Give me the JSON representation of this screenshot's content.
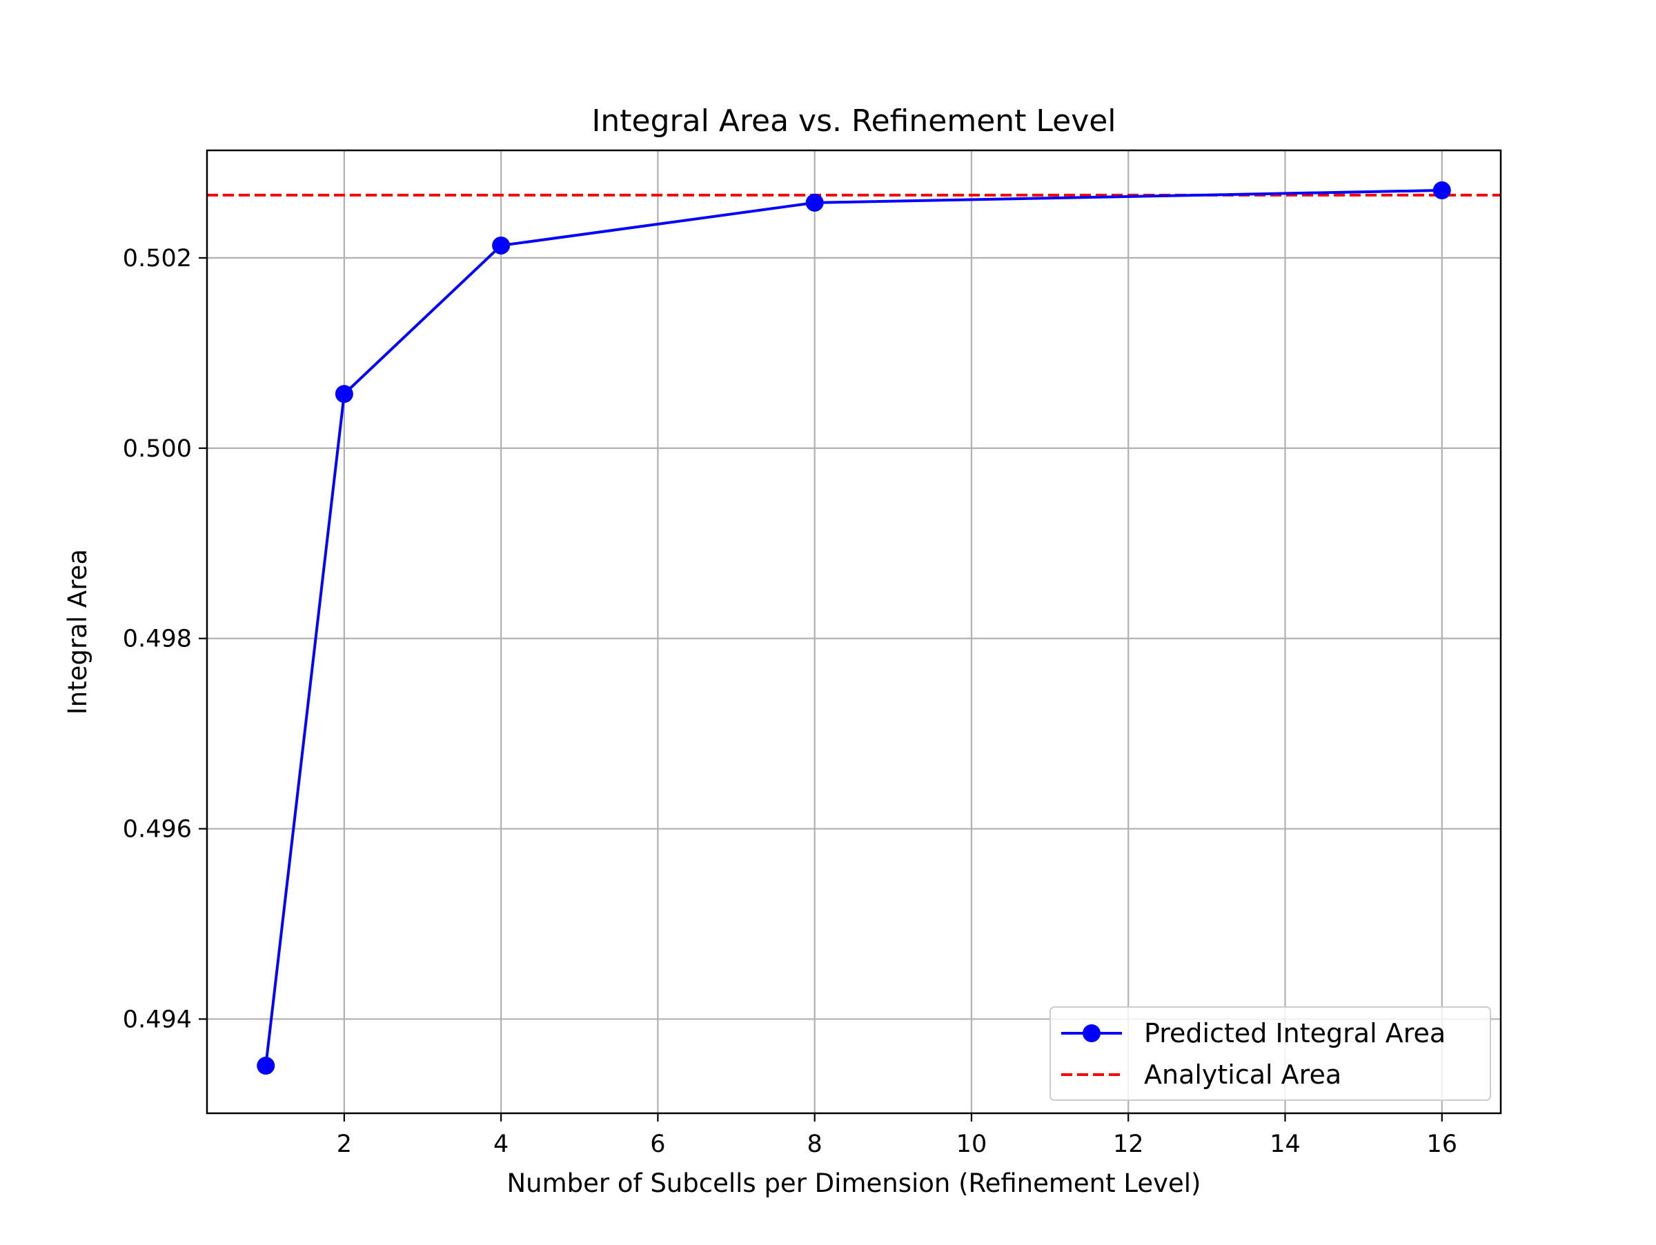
{
  "chart_data": {
    "type": "line",
    "title": "Integral Area vs. Refinement Level",
    "xlabel": "Number of Subcells per Dimension (Refinement Level)",
    "ylabel": "Integral Area",
    "xlim": [
      0.25,
      16.75
    ],
    "ylim": [
      0.49301,
      0.50313
    ],
    "x_ticks": [
      2,
      4,
      6,
      8,
      10,
      12,
      14,
      16
    ],
    "y_ticks": [
      0.494,
      0.496,
      0.498,
      0.5,
      0.502
    ],
    "x_tick_labels": [
      "2",
      "4",
      "6",
      "8",
      "10",
      "12",
      "14",
      "16"
    ],
    "y_tick_labels": [
      "0.494",
      "0.496",
      "0.498",
      "0.500",
      "0.502"
    ],
    "grid": true,
    "legend_position": "lower-right",
    "series": [
      {
        "name": "Predicted Integral Area",
        "style": "solid-line-circle-markers",
        "color": "#0000ff",
        "x": [
          1,
          2,
          4,
          8,
          16
        ],
        "y": [
          0.49351,
          0.50057,
          0.50213,
          0.50258,
          0.50271
        ]
      }
    ],
    "reference_lines": [
      {
        "name": "Analytical Area",
        "style": "dashed",
        "color": "#ff0000",
        "y": 0.50266
      }
    ]
  }
}
